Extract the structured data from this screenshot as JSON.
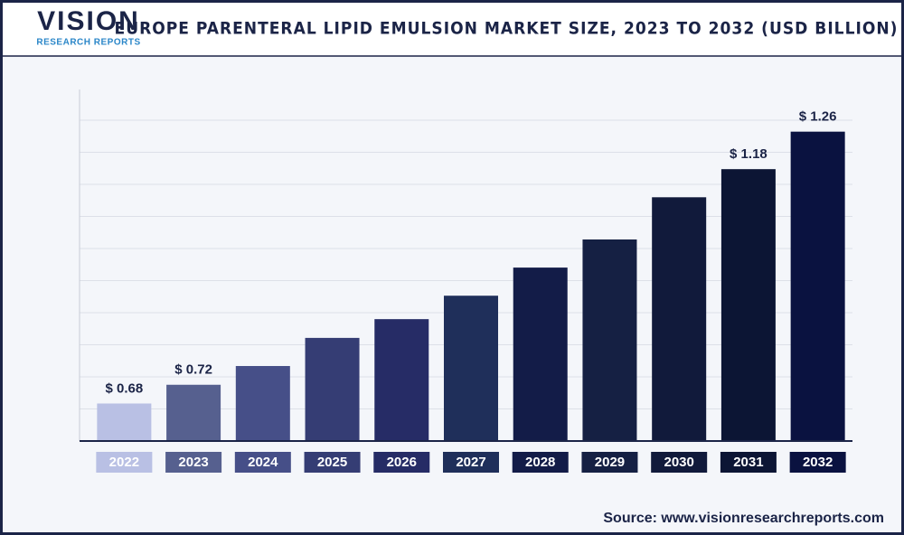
{
  "brand": {
    "name": "VISION",
    "tagline": "RESEARCH REPORTS"
  },
  "source": "Source: www.visionresearchreports.com",
  "chart_data": {
    "type": "bar",
    "title": "EUROPE PARENTERAL LIPID EMULSION MARKET SIZE, 2023 TO 2032 (USD BILLION)",
    "categories": [
      "2022",
      "2023",
      "2024",
      "2025",
      "2026",
      "2027",
      "2028",
      "2029",
      "2030",
      "2031",
      "2032"
    ],
    "values": [
      0.68,
      0.72,
      0.76,
      0.82,
      0.86,
      0.91,
      0.97,
      1.03,
      1.12,
      1.18,
      1.26
    ],
    "value_labels": [
      "$ 0.68",
      "$ 0.72",
      null,
      null,
      null,
      null,
      null,
      null,
      null,
      "$ 1.18",
      "$ 1.26"
    ],
    "colors": [
      "#b9c0e4",
      "#56608f",
      "#464f88",
      "#353d74",
      "#262c66",
      "#1f2f5a",
      "#131c48",
      "#152043",
      "#111a3b",
      "#0c1534",
      "#0a1240"
    ],
    "ylim": [
      0.6,
      1.35
    ],
    "grid": true
  }
}
